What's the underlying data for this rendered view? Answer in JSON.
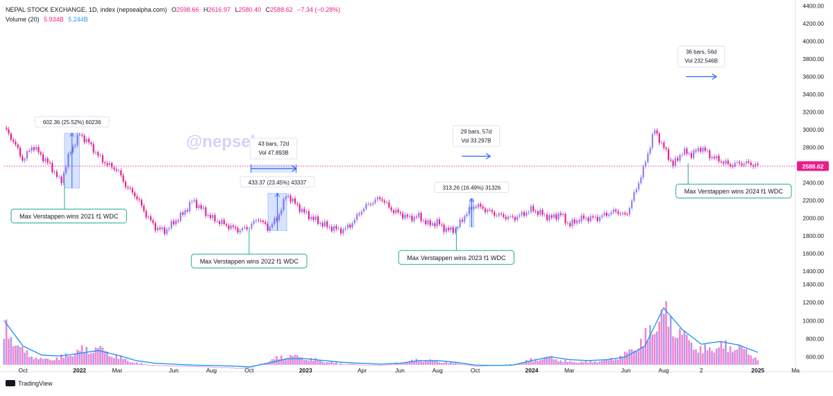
{
  "header": {
    "title": "NEPAL STOCK EXCHANGE, 1D, index (nepsealpha.com)",
    "o_label": "O",
    "o_value": "2598.66",
    "h_label": "H",
    "h_value": "2616.97",
    "l_label": "L",
    "l_value": "2580.40",
    "c_label": "C",
    "c_value": "2588.62",
    "change": "−7.34 (−0.28%)",
    "volume_label": "Volume (20)",
    "volume_value": "5.934B",
    "volume_ma": "5.244B"
  },
  "watermark": "@nepsebro",
  "footer": {
    "brand": "TradingView"
  },
  "colors": {
    "price": "#e91e8c",
    "volume_ma": "#2196f3",
    "measure_box": "#2962ff",
    "callout_border": "#26a69a"
  },
  "chart_data": {
    "type": "line",
    "price_axis": {
      "ticks": [
        1400,
        1600,
        1800,
        2000,
        2200,
        2400,
        2600,
        2800,
        3000,
        3200,
        3400,
        3600,
        3800,
        4000,
        4200,
        4400
      ],
      "labels": [
        "1400.00",
        "1600.00",
        "1800.00",
        "2000.00",
        "2200.00",
        "2400.00",
        "2600.00",
        "2800.00",
        "3000.00",
        "3200.00",
        "3400.00",
        "3600.00",
        "3800.00",
        "4000.00",
        "4200.00",
        "4400.00"
      ],
      "ylim": [
        600,
        4400
      ]
    },
    "volume_axis": {
      "ticks": [
        600,
        800,
        1000,
        1200,
        1400
      ],
      "labels": [
        "600.00",
        "800.00",
        "1000.00",
        "1200.00",
        "1400.00"
      ]
    },
    "x_ticks": [
      {
        "t": 1,
        "label": "Oct"
      },
      {
        "t": 4,
        "label": "2022"
      },
      {
        "t": 6,
        "label": "Mar"
      },
      {
        "t": 9,
        "label": "Jun"
      },
      {
        "t": 11,
        "label": "Aug"
      },
      {
        "t": 13,
        "label": "Oct"
      },
      {
        "t": 16,
        "label": "2023"
      },
      {
        "t": 19,
        "label": "Apr"
      },
      {
        "t": 21,
        "label": "Jun"
      },
      {
        "t": 23,
        "label": "Aug"
      },
      {
        "t": 25,
        "label": "Oct"
      },
      {
        "t": 28,
        "label": "2024"
      },
      {
        "t": 30,
        "label": "Mar"
      },
      {
        "t": 33,
        "label": "Jun"
      },
      {
        "t": 35,
        "label": "Aug"
      },
      {
        "t": 37,
        "label": "2"
      },
      {
        "t": 40,
        "label": "2025"
      },
      {
        "t": 42,
        "label": "Ma"
      }
    ],
    "price_series": {
      "name": "NEPSE Close",
      "t": [
        0,
        0.5,
        1,
        1.5,
        2,
        2.5,
        3,
        3.5,
        4,
        4.5,
        5,
        5.5,
        6,
        6.5,
        7,
        7.5,
        8,
        8.5,
        9,
        9.5,
        10,
        10.5,
        11,
        11.5,
        12,
        12.5,
        13,
        13.5,
        14,
        14.5,
        15,
        15.5,
        16,
        16.5,
        17,
        17.5,
        18,
        18.5,
        19,
        19.5,
        20,
        20.5,
        21,
        21.5,
        22,
        22.5,
        23,
        23.5,
        24,
        24.5,
        25,
        25.5,
        26,
        26.5,
        27,
        27.5,
        28,
        28.5,
        29,
        29.5,
        30,
        30.5,
        31,
        31.5,
        32,
        32.5,
        33,
        33.5,
        34,
        34.5,
        35,
        35.5,
        36,
        36.5,
        37,
        37.5,
        38,
        38.5,
        39,
        39.5,
        40
      ],
      "values": [
        3020,
        2870,
        2650,
        2820,
        2700,
        2580,
        2400,
        2750,
        2950,
        2850,
        2700,
        2600,
        2550,
        2350,
        2250,
        2050,
        1900,
        1850,
        1950,
        2050,
        2200,
        2100,
        2000,
        1950,
        1900,
        1860,
        1900,
        2000,
        1880,
        2000,
        2270,
        2150,
        2050,
        1980,
        1920,
        1880,
        1860,
        1950,
        2100,
        2180,
        2230,
        2100,
        2050,
        2000,
        2020,
        1930,
        1950,
        1860,
        1880,
        2050,
        2150,
        2100,
        2050,
        2020,
        2000,
        2040,
        2100,
        2050,
        2000,
        2050,
        1920,
        1990,
        2000,
        2000,
        2050,
        2080,
        2020,
        2300,
        2600,
        3000,
        2800,
        2600,
        2750,
        2720,
        2800,
        2700,
        2650,
        2600,
        2620,
        2620,
        2588.62
      ]
    },
    "volume_series": {
      "name": "Volume",
      "t": [
        0,
        1,
        2,
        3,
        4,
        5,
        6,
        7,
        8,
        9,
        10,
        11,
        12,
        13,
        14,
        15,
        16,
        17,
        18,
        19,
        20,
        21,
        22,
        23,
        24,
        25,
        26,
        27,
        28,
        29,
        30,
        31,
        32,
        33,
        34,
        35,
        36,
        37,
        38,
        39,
        40
      ],
      "values": [
        1000,
        690,
        580,
        610,
        700,
        730,
        620,
        540,
        510,
        505,
        500,
        490,
        480,
        470,
        560,
        640,
        600,
        560,
        530,
        520,
        510,
        540,
        580,
        560,
        540,
        500,
        510,
        520,
        580,
        610,
        550,
        560,
        570,
        650,
        850,
        1180,
        900,
        700,
        760,
        740,
        600
      ]
    },
    "volume_ma_series": {
      "name": "Volume MA 20",
      "t": [
        0,
        1,
        2,
        3,
        4,
        5,
        6,
        7,
        8,
        9,
        10,
        11,
        12,
        13,
        14,
        15,
        16,
        17,
        18,
        19,
        20,
        21,
        22,
        23,
        24,
        25,
        26,
        27,
        28,
        29,
        30,
        31,
        32,
        33,
        34,
        35,
        36,
        37,
        38,
        39,
        40
      ],
      "values": [
        1000,
        720,
        620,
        610,
        640,
        670,
        620,
        560,
        530,
        520,
        510,
        505,
        500,
        490,
        530,
        580,
        580,
        560,
        540,
        530,
        520,
        530,
        560,
        560,
        540,
        510,
        505,
        510,
        560,
        600,
        570,
        560,
        570,
        600,
        720,
        1140,
        900,
        740,
        770,
        730,
        650
      ]
    },
    "current_price": {
      "value": 2588.62,
      "label": "2588.62"
    },
    "measurements": [
      {
        "kind": "price_range",
        "t0": 3.2,
        "t1": 4.0,
        "p0": 2340,
        "p1": 2960,
        "label": "602.36 (25.52%) 60236",
        "label_value": 2960
      },
      {
        "kind": "date_range",
        "t0": 13.1,
        "t1": 15.5,
        "price": 2560,
        "line1": "43 bars, 72d",
        "line2": "Vol 47.893B"
      },
      {
        "kind": "price_range",
        "t0": 14.0,
        "t1": 15.0,
        "p0": 1860,
        "p1": 2280,
        "label": "433.37 (23.45%) 43337",
        "label_value": 2280
      },
      {
        "kind": "price_range",
        "t0": 24.7,
        "t1": 24.9,
        "p0": 1900,
        "p1": 2220,
        "label": "313.26 (16.49%) 31326",
        "label_value": 2220
      },
      {
        "kind": "date_range",
        "t0": 24.3,
        "t1": 25.8,
        "price": 2700,
        "line1": "29 bars, 57d",
        "line2": "Vol 33.297B"
      },
      {
        "kind": "date_range",
        "t0": 36.2,
        "t1": 37.8,
        "price": 3600,
        "line1": "36 bars, 56d",
        "line2": "Vol 232.546B"
      }
    ],
    "annotations": [
      {
        "text": "Max Verstappen wins 2021 f1 WDC",
        "t": 3.2,
        "price": 2400
      },
      {
        "text": "Max Verstappen wins 2022 f1 WDC",
        "t": 13.0,
        "price": 1860
      },
      {
        "text": "Max Verstappen wins 2023 f1 WDC",
        "t": 24.0,
        "price": 1900
      },
      {
        "text": "Max Verstappen wins 2024 f1 WDC",
        "t": 36.3,
        "price": 2620
      }
    ]
  }
}
